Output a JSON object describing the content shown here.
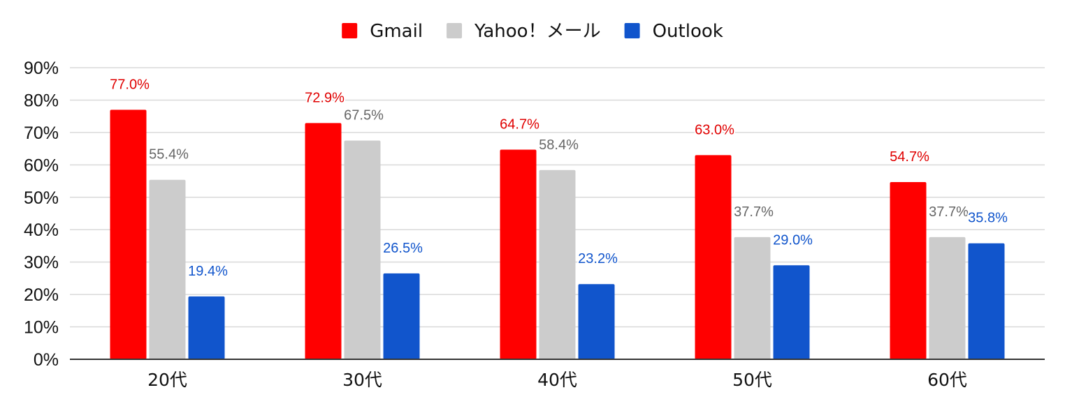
{
  "chart_data": {
    "type": "bar",
    "title": "",
    "xlabel": "",
    "ylabel": "",
    "categories": [
      "20代",
      "30代",
      "40代",
      "50代",
      "60代"
    ],
    "series": [
      {
        "name": "Gmail",
        "color": "#ff0000",
        "label_color": "#e00000",
        "values": [
          77.0,
          72.9,
          64.7,
          63.0,
          54.7
        ],
        "labels": [
          "77.0%",
          "72.9%",
          "64.7%",
          "63.0%",
          "54.7%"
        ]
      },
      {
        "name": "Yahoo！メール",
        "color": "#cccccc",
        "label_color": "#666666",
        "values": [
          55.4,
          67.5,
          58.4,
          37.7,
          37.7
        ],
        "labels": [
          "55.4%",
          "67.5%",
          "58.4%",
          "37.7%",
          "37.7%"
        ]
      },
      {
        "name": "Outlook",
        "color": "#1155cc",
        "label_color": "#1155cc",
        "values": [
          19.4,
          26.5,
          23.2,
          29.0,
          35.8
        ],
        "labels": [
          "19.4%",
          "26.5%",
          "23.2%",
          "29.0%",
          "35.8%"
        ]
      }
    ],
    "ylim": [
      0,
      90
    ],
    "yticks": [
      0,
      10,
      20,
      30,
      40,
      50,
      60,
      70,
      80,
      90
    ],
    "ytick_labels": [
      "0%",
      "10%",
      "20%",
      "30%",
      "40%",
      "50%",
      "60%",
      "70%",
      "80%",
      "90%"
    ],
    "grid": true,
    "legend_position": "top-center",
    "gridline_color": "#d9d9d9",
    "axis_color": "#333333"
  }
}
